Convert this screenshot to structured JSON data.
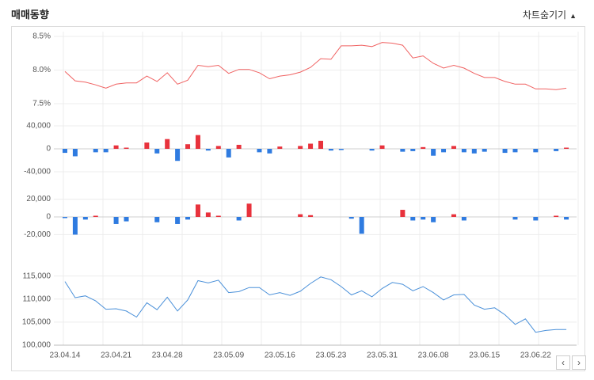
{
  "header": {
    "title": "매매동향",
    "toggle_label": "차트숨기기",
    "toggle_icon": "triangle-up-icon"
  },
  "nav": {
    "prev_label": "‹",
    "next_label": "›"
  },
  "colors": {
    "line_top": "#f06262",
    "pos": "#e8323c",
    "neg": "#2f7be0",
    "line_bottom": "#4a90d9",
    "grid": "#ececec"
  },
  "chart_data": [
    {
      "type": "line",
      "name": "rate-panel",
      "x": [
        "23.04.14",
        "23.04.17",
        "23.04.18",
        "23.04.19",
        "23.04.20",
        "23.04.21",
        "23.04.24",
        "23.04.25",
        "23.04.26",
        "23.04.27",
        "23.04.28",
        "23.05.01",
        "23.05.02",
        "23.05.03",
        "23.05.04",
        "23.05.08",
        "23.05.09",
        "23.05.10",
        "23.05.11",
        "23.05.12",
        "23.05.15",
        "23.05.16",
        "23.05.17",
        "23.05.18",
        "23.05.19",
        "23.05.22",
        "23.05.23",
        "23.05.24",
        "23.05.25",
        "23.05.26",
        "23.05.30",
        "23.05.31",
        "23.06.01",
        "23.06.02",
        "23.06.05",
        "23.06.07",
        "23.06.08",
        "23.06.09",
        "23.06.12",
        "23.06.13",
        "23.06.14",
        "23.06.15",
        "23.06.16",
        "23.06.19",
        "23.06.20",
        "23.06.21",
        "23.06.22",
        "23.06.23",
        "23.06.26",
        "23.06.27",
        "23.06.28"
      ],
      "values": [
        7.98,
        7.84,
        7.82,
        7.78,
        7.73,
        7.79,
        7.81,
        7.81,
        7.91,
        7.83,
        7.96,
        7.79,
        7.85,
        8.07,
        8.05,
        8.07,
        7.95,
        8.01,
        8.01,
        7.96,
        7.87,
        7.91,
        7.93,
        7.97,
        8.04,
        8.17,
        8.16,
        8.36,
        8.36,
        8.37,
        8.35,
        8.41,
        8.4,
        8.37,
        8.18,
        8.21,
        8.1,
        8.03,
        8.07,
        8.03,
        7.95,
        7.89,
        7.89,
        7.83,
        7.79,
        7.79,
        7.72,
        7.72,
        7.71,
        7.73,
        null
      ],
      "yticks": [
        "8.5%",
        "8.0%",
        "7.5%"
      ],
      "ylim": [
        7.5,
        8.5
      ]
    },
    {
      "type": "bar",
      "name": "flow-panel-1",
      "values": [
        -7000,
        -13000,
        0,
        -6000,
        -6000,
        6000,
        2000,
        0,
        11000,
        -8000,
        17000,
        -21000,
        8000,
        24000,
        -3000,
        5000,
        -15000,
        7000,
        0,
        -6000,
        -8000,
        4000,
        0,
        5000,
        9000,
        14000,
        -3000,
        -2000,
        0,
        0,
        -3000,
        6000,
        0,
        -5000,
        -4000,
        3000,
        -12000,
        -6000,
        5000,
        -6000,
        -8000,
        -5000,
        0,
        -7000,
        -6000,
        0,
        -6000,
        0,
        -4000,
        2000,
        0
      ],
      "yticks": [
        "40,000",
        "0",
        "-40,000"
      ],
      "ylim": [
        -40000,
        40000
      ]
    },
    {
      "type": "bar",
      "name": "flow-panel-2",
      "values": [
        -500,
        -20000,
        -3000,
        1000,
        0,
        -8000,
        -5000,
        0,
        0,
        -6000,
        0,
        -8000,
        -3000,
        14000,
        5000,
        1000,
        0,
        -4000,
        15000,
        0,
        0,
        0,
        0,
        3000,
        2000,
        0,
        0,
        0,
        -2000,
        -19000,
        0,
        0,
        0,
        8000,
        -4000,
        -3000,
        -6000,
        0,
        3000,
        -4000,
        0,
        0,
        0,
        0,
        -3000,
        0,
        -4000,
        0,
        1000,
        -3000,
        0
      ],
      "yticks": [
        "20,000",
        "0",
        "-20,000"
      ],
      "ylim": [
        -25000,
        25000
      ]
    },
    {
      "type": "line",
      "name": "price-panel",
      "values": [
        113800,
        110300,
        110700,
        109600,
        107800,
        107900,
        107400,
        106100,
        109200,
        107700,
        110400,
        107400,
        109800,
        114000,
        113500,
        114100,
        111400,
        111600,
        112500,
        112500,
        110900,
        111400,
        110800,
        111700,
        113400,
        114800,
        114200,
        112700,
        110900,
        111800,
        110500,
        112300,
        113600,
        113200,
        111800,
        112700,
        111400,
        109800,
        110900,
        111000,
        108700,
        107800,
        108100,
        106600,
        104500,
        105700,
        102800,
        103200,
        103400,
        103400,
        null
      ],
      "x_labels": [
        "23.04.14",
        "23.04.21",
        "23.04.28",
        "23.05.09",
        "23.05.16",
        "23.05.23",
        "23.05.31",
        "23.06.08",
        "23.06.15",
        "23.06.22"
      ],
      "yticks": [
        "115,000",
        "110,000",
        "105,000",
        "100,000"
      ],
      "ylim": [
        100000,
        117000
      ]
    }
  ]
}
